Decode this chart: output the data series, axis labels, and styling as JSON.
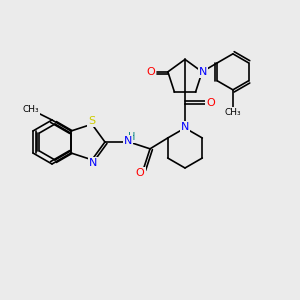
{
  "background_color": "#ebebeb",
  "bond_color": "#000000",
  "atom_colors": {
    "N": "#0000ff",
    "O": "#ff0000",
    "S": "#cccc00",
    "H": "#008080",
    "C": "#000000"
  },
  "font_size": 7,
  "line_width": 1.2
}
